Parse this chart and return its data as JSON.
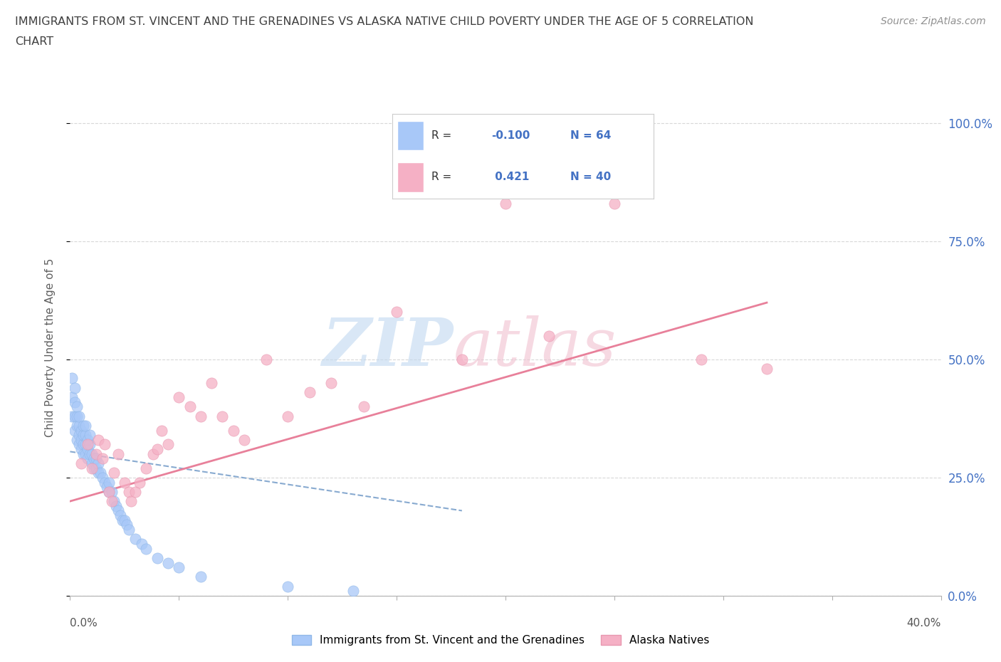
{
  "title_line1": "IMMIGRANTS FROM ST. VINCENT AND THE GRENADINES VS ALASKA NATIVE CHILD POVERTY UNDER THE AGE OF 5 CORRELATION",
  "title_line2": "CHART",
  "source": "Source: ZipAtlas.com",
  "ylabel": "Child Poverty Under the Age of 5",
  "blue_label": "Immigrants from St. Vincent and the Grenadines",
  "pink_label": "Alaska Natives",
  "blue_R": -0.1,
  "blue_N": 64,
  "pink_R": 0.421,
  "pink_N": 40,
  "xlim": [
    0.0,
    0.4
  ],
  "ylim": [
    0.0,
    1.05
  ],
  "blue_color": "#a8c8f8",
  "blue_edge": "#90b8e8",
  "pink_color": "#f5b0c5",
  "pink_edge": "#e898b0",
  "blue_trend_color": "#88aad0",
  "pink_trend_color": "#e8809a",
  "grid_color": "#d8d8d8",
  "title_color": "#404040",
  "source_color": "#909090",
  "right_tick_color": "#4472c4",
  "ylabel_color": "#606060",
  "blue_dots_x": [
    0.001,
    0.001,
    0.001,
    0.002,
    0.002,
    0.002,
    0.002,
    0.003,
    0.003,
    0.003,
    0.003,
    0.004,
    0.004,
    0.004,
    0.004,
    0.005,
    0.005,
    0.005,
    0.006,
    0.006,
    0.006,
    0.006,
    0.007,
    0.007,
    0.007,
    0.007,
    0.008,
    0.008,
    0.008,
    0.009,
    0.009,
    0.009,
    0.01,
    0.01,
    0.011,
    0.011,
    0.012,
    0.012,
    0.013,
    0.013,
    0.014,
    0.015,
    0.016,
    0.017,
    0.018,
    0.018,
    0.019,
    0.02,
    0.021,
    0.022,
    0.023,
    0.024,
    0.025,
    0.026,
    0.027,
    0.03,
    0.033,
    0.035,
    0.04,
    0.045,
    0.05,
    0.06,
    0.1,
    0.13
  ],
  "blue_dots_y": [
    0.38,
    0.42,
    0.46,
    0.35,
    0.38,
    0.41,
    0.44,
    0.33,
    0.36,
    0.38,
    0.4,
    0.32,
    0.34,
    0.36,
    0.38,
    0.31,
    0.33,
    0.35,
    0.3,
    0.32,
    0.34,
    0.36,
    0.3,
    0.32,
    0.34,
    0.36,
    0.29,
    0.31,
    0.33,
    0.3,
    0.32,
    0.34,
    0.28,
    0.3,
    0.27,
    0.29,
    0.27,
    0.29,
    0.26,
    0.28,
    0.26,
    0.25,
    0.24,
    0.23,
    0.22,
    0.24,
    0.22,
    0.2,
    0.19,
    0.18,
    0.17,
    0.16,
    0.16,
    0.15,
    0.14,
    0.12,
    0.11,
    0.1,
    0.08,
    0.07,
    0.06,
    0.04,
    0.02,
    0.01
  ],
  "pink_dots_x": [
    0.005,
    0.008,
    0.01,
    0.012,
    0.013,
    0.015,
    0.016,
    0.018,
    0.019,
    0.02,
    0.022,
    0.025,
    0.027,
    0.028,
    0.03,
    0.032,
    0.035,
    0.038,
    0.04,
    0.042,
    0.045,
    0.05,
    0.055,
    0.06,
    0.065,
    0.07,
    0.075,
    0.08,
    0.09,
    0.1,
    0.11,
    0.12,
    0.135,
    0.15,
    0.18,
    0.2,
    0.22,
    0.25,
    0.29,
    0.32
  ],
  "pink_dots_y": [
    0.28,
    0.32,
    0.27,
    0.3,
    0.33,
    0.29,
    0.32,
    0.22,
    0.2,
    0.26,
    0.3,
    0.24,
    0.22,
    0.2,
    0.22,
    0.24,
    0.27,
    0.3,
    0.31,
    0.35,
    0.32,
    0.42,
    0.4,
    0.38,
    0.45,
    0.38,
    0.35,
    0.33,
    0.5,
    0.38,
    0.43,
    0.45,
    0.4,
    0.6,
    0.5,
    0.83,
    0.55,
    0.83,
    0.5,
    0.48
  ],
  "blue_trend_x": [
    0.0,
    0.18
  ],
  "blue_trend_y": [
    0.305,
    0.18
  ],
  "pink_trend_x": [
    0.0,
    0.32
  ],
  "pink_trend_y": [
    0.2,
    0.62
  ],
  "xtick_positions": [
    0.0,
    0.05,
    0.1,
    0.15,
    0.2,
    0.25,
    0.3,
    0.35,
    0.4
  ],
  "ytick_positions": [
    0.0,
    0.25,
    0.5,
    0.75,
    1.0
  ],
  "ytick_labels": [
    "0.0%",
    "25.0%",
    "50.0%",
    "75.0%",
    "100.0%"
  ]
}
